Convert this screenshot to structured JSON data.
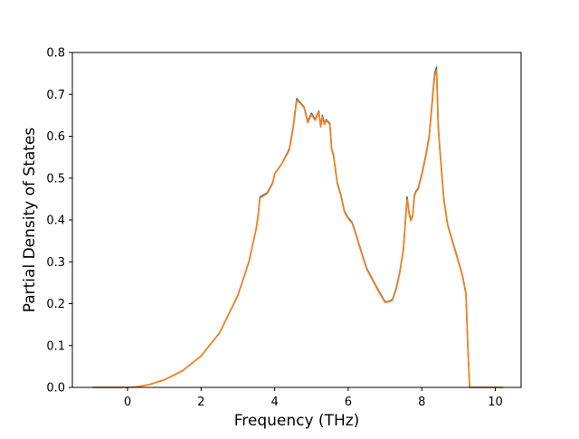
{
  "chart_data": {
    "type": "line",
    "title": "",
    "xlabel": "Frequency (THz)",
    "ylabel": "Partial Density of States",
    "xlim": [
      -1.5,
      10.7
    ],
    "ylim": [
      0.0,
      0.8
    ],
    "xticks": [
      0,
      2,
      4,
      6,
      8,
      10
    ],
    "yticks": [
      0.0,
      0.1,
      0.2,
      0.3,
      0.4,
      0.5,
      0.6,
      0.7,
      0.8
    ],
    "grid": false,
    "legend": "none",
    "series": [
      {
        "color": "#1f77b4",
        "x": [
          -0.95,
          0.0,
          0.3,
          0.6,
          1.0,
          1.5,
          2.0,
          2.5,
          3.0,
          3.3,
          3.5,
          3.55,
          3.6,
          3.8,
          3.95,
          4.0,
          4.2,
          4.4,
          4.5,
          4.6,
          4.7,
          4.8,
          4.9,
          5.0,
          5.1,
          5.2,
          5.25,
          5.3,
          5.35,
          5.4,
          5.5,
          5.55,
          5.6,
          5.7,
          5.8,
          5.9,
          6.0,
          6.1,
          6.2,
          6.3,
          6.5,
          6.8,
          7.0,
          7.1,
          7.2,
          7.3,
          7.4,
          7.5,
          7.6,
          7.65,
          7.7,
          7.75,
          7.8,
          7.85,
          7.9,
          8.0,
          8.1,
          8.2,
          8.3,
          8.35,
          8.4,
          8.45,
          8.5,
          8.6,
          8.7,
          8.9,
          9.1,
          9.2,
          9.25,
          9.3,
          10.2
        ],
        "values": [
          0.0,
          0.0,
          0.002,
          0.007,
          0.018,
          0.04,
          0.075,
          0.13,
          0.22,
          0.3,
          0.38,
          0.41,
          0.455,
          0.465,
          0.49,
          0.51,
          0.535,
          0.57,
          0.62,
          0.69,
          0.68,
          0.67,
          0.635,
          0.655,
          0.64,
          0.66,
          0.625,
          0.65,
          0.63,
          0.64,
          0.63,
          0.57,
          0.555,
          0.49,
          0.46,
          0.42,
          0.405,
          0.395,
          0.37,
          0.34,
          0.285,
          0.235,
          0.205,
          0.205,
          0.21,
          0.235,
          0.275,
          0.33,
          0.455,
          0.42,
          0.4,
          0.41,
          0.46,
          0.47,
          0.475,
          0.51,
          0.55,
          0.6,
          0.7,
          0.75,
          0.765,
          0.62,
          0.56,
          0.45,
          0.39,
          0.33,
          0.27,
          0.225,
          0.1,
          0.0,
          0.0
        ]
      },
      {
        "color": "#ff7f0e",
        "x": [
          -0.95,
          0.0,
          0.3,
          0.6,
          1.0,
          1.5,
          2.0,
          2.5,
          3.0,
          3.3,
          3.5,
          3.55,
          3.6,
          3.8,
          3.95,
          4.0,
          4.2,
          4.4,
          4.5,
          4.6,
          4.7,
          4.8,
          4.9,
          5.0,
          5.1,
          5.2,
          5.25,
          5.3,
          5.35,
          5.4,
          5.5,
          5.55,
          5.6,
          5.7,
          5.8,
          5.9,
          6.0,
          6.1,
          6.2,
          6.3,
          6.5,
          6.8,
          7.0,
          7.1,
          7.2,
          7.3,
          7.4,
          7.5,
          7.6,
          7.65,
          7.7,
          7.75,
          7.8,
          7.85,
          7.9,
          8.0,
          8.1,
          8.2,
          8.3,
          8.35,
          8.4,
          8.45,
          8.5,
          8.6,
          8.7,
          8.9,
          9.1,
          9.2,
          9.25,
          9.3,
          10.2
        ],
        "values": [
          0.0,
          0.0,
          0.002,
          0.007,
          0.018,
          0.04,
          0.075,
          0.13,
          0.22,
          0.3,
          0.38,
          0.41,
          0.452,
          0.463,
          0.488,
          0.51,
          0.535,
          0.567,
          0.617,
          0.686,
          0.678,
          0.668,
          0.632,
          0.652,
          0.638,
          0.658,
          0.622,
          0.647,
          0.628,
          0.638,
          0.628,
          0.568,
          0.553,
          0.488,
          0.458,
          0.418,
          0.403,
          0.393,
          0.368,
          0.338,
          0.283,
          0.233,
          0.203,
          0.204,
          0.208,
          0.233,
          0.273,
          0.328,
          0.45,
          0.417,
          0.398,
          0.408,
          0.458,
          0.468,
          0.473,
          0.507,
          0.547,
          0.597,
          0.695,
          0.745,
          0.758,
          0.617,
          0.557,
          0.448,
          0.388,
          0.328,
          0.268,
          0.223,
          0.1,
          0.0,
          0.0
        ]
      }
    ]
  }
}
